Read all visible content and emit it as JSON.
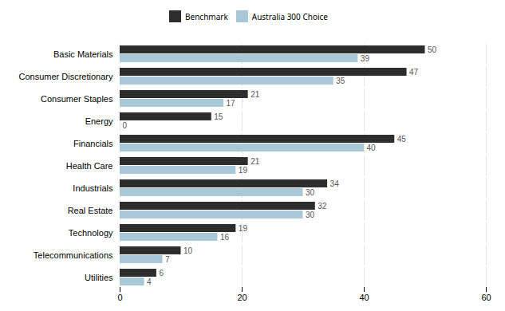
{
  "chart_data": {
    "type": "bar",
    "orientation": "horizontal",
    "categories": [
      "Basic Materials",
      "Consumer Discretionary",
      "Consumer Staples",
      "Energy",
      "Financials",
      "Health Care",
      "Industrials",
      "Real Estate",
      "Technology",
      "Telecommunications",
      "Utilities"
    ],
    "series": [
      {
        "name": "Benchmark",
        "color": "#2d2d2d",
        "values": [
          50,
          47,
          21,
          15,
          45,
          21,
          34,
          32,
          19,
          10,
          6
        ]
      },
      {
        "name": "Australia 300 Choice",
        "color": "#a8c8d8",
        "values": [
          39,
          35,
          17,
          0,
          40,
          19,
          30,
          30,
          16,
          7,
          4
        ]
      }
    ],
    "xlim": [
      0,
      60
    ],
    "xticks": [
      0,
      20,
      40,
      60
    ],
    "grid": true,
    "data_labels": true,
    "legend": "top"
  }
}
